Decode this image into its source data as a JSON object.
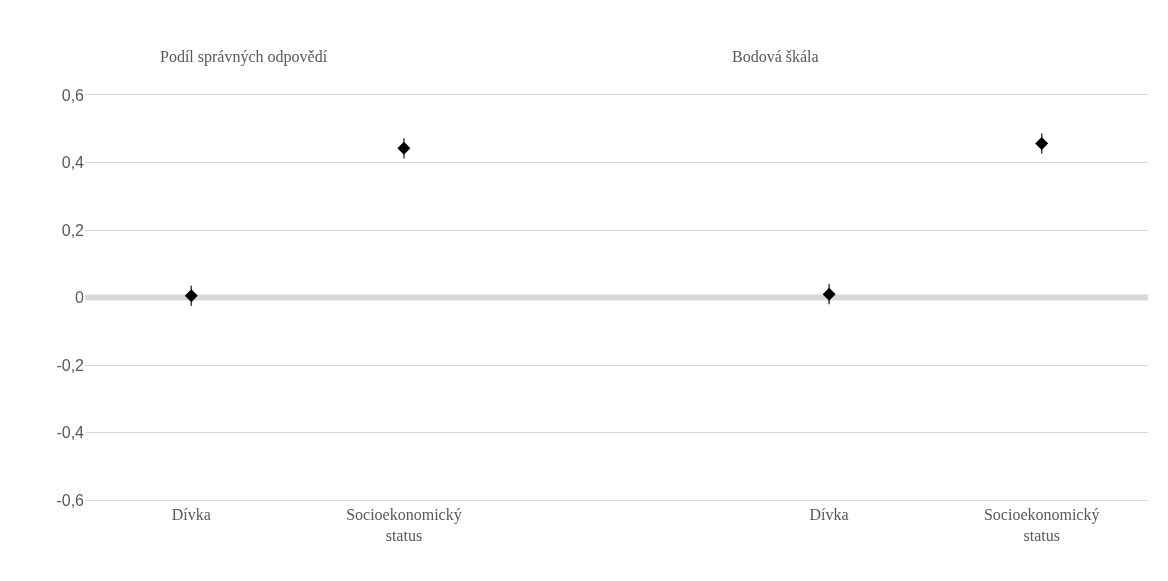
{
  "chart_data": {
    "type": "scatter",
    "categories": [
      "Dívka",
      "Socioekonomický status",
      null,
      "Dívka",
      "Socioekonomický status"
    ],
    "series": [
      {
        "color": "#000000",
        "values": [
          0.005,
          0.442,
          null,
          0.01,
          0.456
        ],
        "errors": [
          0.03,
          0.03,
          null,
          0.03,
          0.03
        ]
      }
    ],
    "ylim": [
      -0.6,
      0.6
    ],
    "yticks": [
      {
        "value": 0.6,
        "label": "0,6"
      },
      {
        "value": 0.4,
        "label": "0,4"
      },
      {
        "value": 0.2,
        "label": "0,2"
      },
      0,
      {
        "value": -0.2,
        "label": "-0,2"
      },
      {
        "value": -0.4,
        "label": "-0,4"
      },
      {
        "value": -0.6,
        "label": "-0,6"
      }
    ],
    "ref_lines": [
      {
        "axis": "y",
        "value": 0,
        "color": "#d9d9d9"
      }
    ],
    "annotations": [
      "Podíl správných odpovědí",
      "Bodová škála"
    ],
    "grid": "y",
    "marker": "diamond"
  }
}
